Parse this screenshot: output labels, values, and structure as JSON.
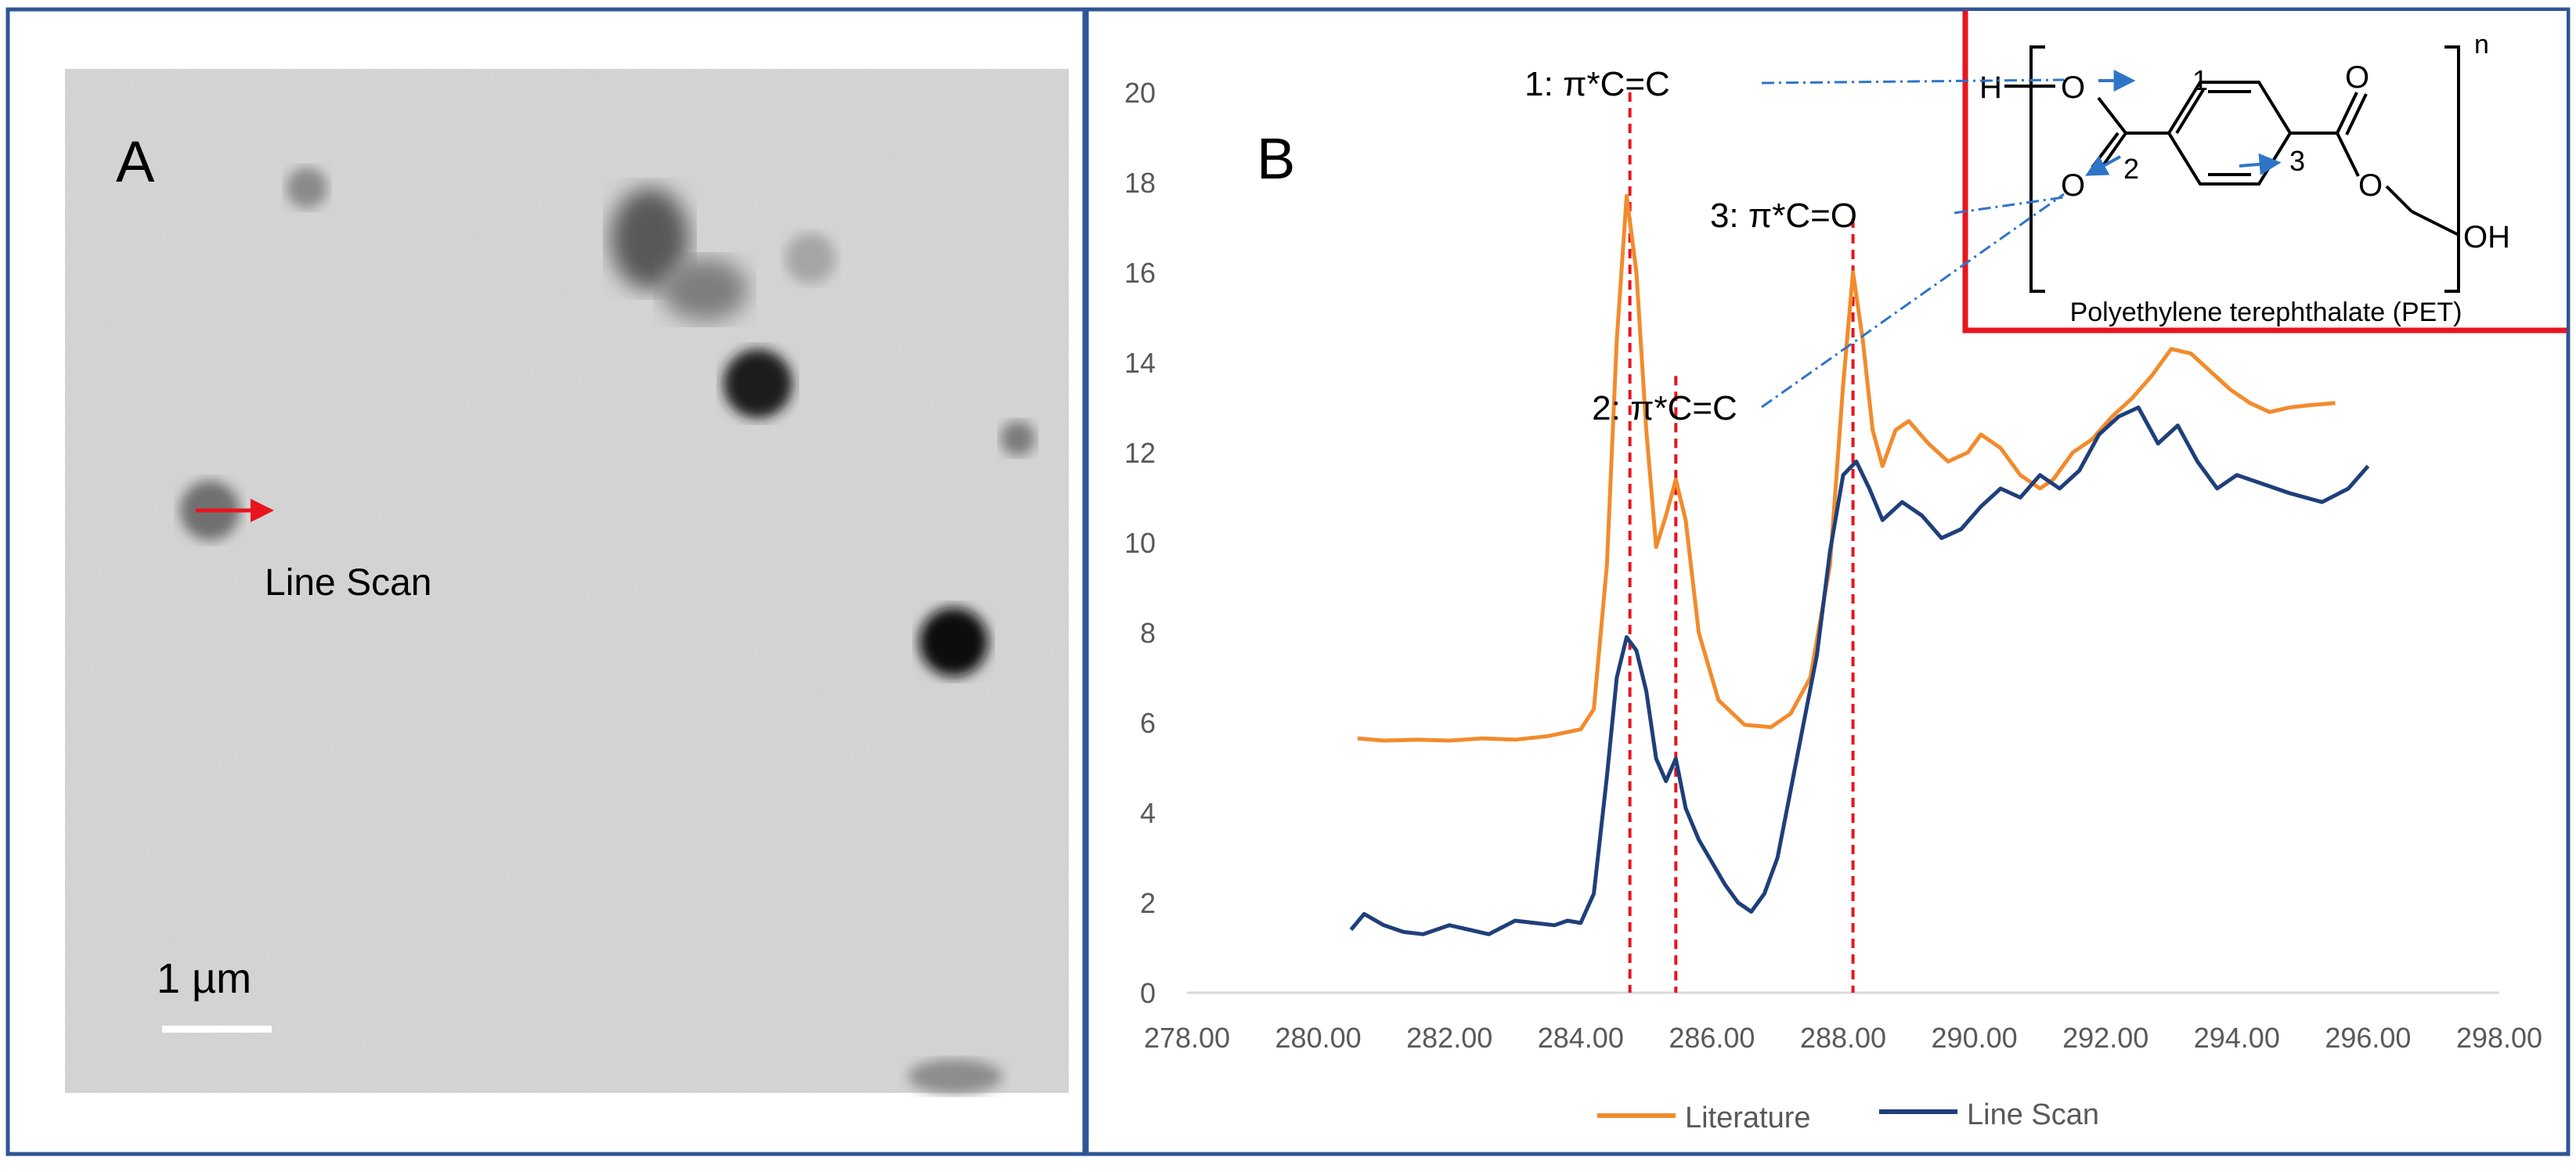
{
  "panel_a": {
    "label": "A",
    "line_scan_label": "Line Scan",
    "scale_bar_label": "1 µm"
  },
  "panel_b": {
    "label": "B",
    "annotations": [
      {
        "id": 1,
        "text": "1: π*C=C",
        "x": 284.75
      },
      {
        "id": 2,
        "text": "2: π*C=C",
        "x": 285.45
      },
      {
        "id": 3,
        "text": "3: π*C=O",
        "x": 288.15
      }
    ],
    "inset": {
      "caption": "Polyethylene terephthalate (PET)",
      "atom_h": "H",
      "atom_o": "O",
      "atom_oh": "OH",
      "repeat_n": "n",
      "site_labels": [
        "1",
        "2",
        "3"
      ],
      "border_color": "#e8141e",
      "arrow_color": "#2e75c8"
    }
  },
  "colors": {
    "literature": "#f28b2c",
    "line_scan": "#1f3f7a",
    "guide": "#e8141e",
    "frame": "#2f5597",
    "axis": "#d9d9d9",
    "tick_text": "#595959"
  },
  "chart_data": {
    "type": "line",
    "title": "",
    "xlabel": "",
    "ylabel": "",
    "xlim": [
      278,
      298
    ],
    "ylim": [
      0,
      20
    ],
    "x_ticks": [
      "278.00",
      "280.00",
      "282.00",
      "284.00",
      "286.00",
      "288.00",
      "290.00",
      "292.00",
      "294.00",
      "296.00",
      "298.00"
    ],
    "y_ticks": [
      "0",
      "2",
      "4",
      "6",
      "8",
      "10",
      "12",
      "14",
      "16",
      "18",
      "20"
    ],
    "legend": [
      "Literature",
      "Line Scan"
    ],
    "legend_position": "bottom",
    "grid": false,
    "series": [
      {
        "name": "Literature",
        "points": [
          [
            280.6,
            5.65
          ],
          [
            281.0,
            5.6
          ],
          [
            281.5,
            5.62
          ],
          [
            282.0,
            5.6
          ],
          [
            282.5,
            5.65
          ],
          [
            283.0,
            5.62
          ],
          [
            283.5,
            5.7
          ],
          [
            284.0,
            5.85
          ],
          [
            284.2,
            6.3
          ],
          [
            284.4,
            9.5
          ],
          [
            284.55,
            14.5
          ],
          [
            284.7,
            17.7
          ],
          [
            284.85,
            16.0
          ],
          [
            285.0,
            12.5
          ],
          [
            285.15,
            9.9
          ],
          [
            285.3,
            10.6
          ],
          [
            285.45,
            11.4
          ],
          [
            285.6,
            10.5
          ],
          [
            285.8,
            8.0
          ],
          [
            286.1,
            6.5
          ],
          [
            286.5,
            5.95
          ],
          [
            286.9,
            5.9
          ],
          [
            287.2,
            6.2
          ],
          [
            287.5,
            7.0
          ],
          [
            287.8,
            9.5
          ],
          [
            288.0,
            13.5
          ],
          [
            288.15,
            16.0
          ],
          [
            288.3,
            14.5
          ],
          [
            288.45,
            12.5
          ],
          [
            288.6,
            11.7
          ],
          [
            288.8,
            12.5
          ],
          [
            289.0,
            12.7
          ],
          [
            289.3,
            12.2
          ],
          [
            289.6,
            11.8
          ],
          [
            289.9,
            12.0
          ],
          [
            290.1,
            12.4
          ],
          [
            290.4,
            12.1
          ],
          [
            290.7,
            11.5
          ],
          [
            291.0,
            11.2
          ],
          [
            291.2,
            11.4
          ],
          [
            291.5,
            12.0
          ],
          [
            291.8,
            12.3
          ],
          [
            292.1,
            12.8
          ],
          [
            292.4,
            13.2
          ],
          [
            292.7,
            13.7
          ],
          [
            293.0,
            14.3
          ],
          [
            293.3,
            14.2
          ],
          [
            293.6,
            13.8
          ],
          [
            293.9,
            13.4
          ],
          [
            294.2,
            13.1
          ],
          [
            294.5,
            12.9
          ],
          [
            294.8,
            13.0
          ],
          [
            295.1,
            13.05
          ],
          [
            295.5,
            13.1
          ]
        ]
      },
      {
        "name": "Line Scan",
        "points": [
          [
            280.5,
            1.4
          ],
          [
            280.7,
            1.75
          ],
          [
            281.0,
            1.5
          ],
          [
            281.3,
            1.35
          ],
          [
            281.6,
            1.3
          ],
          [
            282.0,
            1.5
          ],
          [
            282.3,
            1.4
          ],
          [
            282.6,
            1.3
          ],
          [
            283.0,
            1.6
          ],
          [
            283.3,
            1.55
          ],
          [
            283.6,
            1.5
          ],
          [
            283.8,
            1.6
          ],
          [
            284.0,
            1.55
          ],
          [
            284.2,
            2.2
          ],
          [
            284.4,
            4.8
          ],
          [
            284.55,
            7.0
          ],
          [
            284.7,
            7.9
          ],
          [
            284.85,
            7.6
          ],
          [
            285.0,
            6.7
          ],
          [
            285.15,
            5.2
          ],
          [
            285.3,
            4.7
          ],
          [
            285.45,
            5.2
          ],
          [
            285.6,
            4.1
          ],
          [
            285.8,
            3.4
          ],
          [
            286.0,
            2.9
          ],
          [
            286.2,
            2.4
          ],
          [
            286.4,
            2.0
          ],
          [
            286.6,
            1.8
          ],
          [
            286.8,
            2.2
          ],
          [
            287.0,
            3.0
          ],
          [
            287.2,
            4.5
          ],
          [
            287.4,
            6.0
          ],
          [
            287.6,
            7.5
          ],
          [
            287.8,
            9.8
          ],
          [
            288.0,
            11.5
          ],
          [
            288.2,
            11.8
          ],
          [
            288.4,
            11.2
          ],
          [
            288.6,
            10.5
          ],
          [
            288.9,
            10.9
          ],
          [
            289.2,
            10.6
          ],
          [
            289.5,
            10.1
          ],
          [
            289.8,
            10.3
          ],
          [
            290.1,
            10.8
          ],
          [
            290.4,
            11.2
          ],
          [
            290.7,
            11.0
          ],
          [
            291.0,
            11.5
          ],
          [
            291.3,
            11.2
          ],
          [
            291.6,
            11.6
          ],
          [
            291.9,
            12.4
          ],
          [
            292.2,
            12.8
          ],
          [
            292.5,
            13.0
          ],
          [
            292.8,
            12.2
          ],
          [
            293.1,
            12.6
          ],
          [
            293.4,
            11.8
          ],
          [
            293.7,
            11.2
          ],
          [
            294.0,
            11.5
          ],
          [
            294.4,
            11.3
          ],
          [
            294.8,
            11.1
          ],
          [
            295.3,
            10.9
          ],
          [
            295.7,
            11.2
          ],
          [
            296.0,
            11.7
          ]
        ]
      }
    ]
  }
}
